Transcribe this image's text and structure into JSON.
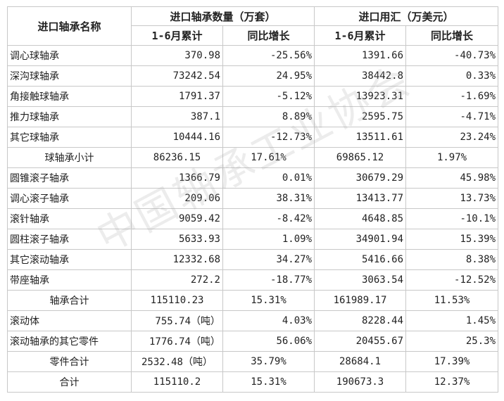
{
  "header": {
    "name_col": "进口轴承名称",
    "group_quantity": "进口轴承数量（万套）",
    "group_forex": "进口用汇（万美元）",
    "sub_cumulative": "1-6月累计",
    "sub_growth": "同比增长"
  },
  "rows": [
    {
      "name": "调心球轴承",
      "qty": "370.98",
      "qty_growth": "-25.56%",
      "fx": "1391.66",
      "fx_growth": "-40.73%",
      "kind": "item"
    },
    {
      "name": "深沟球轴承",
      "qty": "73242.54",
      "qty_growth": "24.95%",
      "fx": "38442.8",
      "fx_growth": "0.33%",
      "kind": "item"
    },
    {
      "name": "角接触球轴承",
      "qty": "1791.37",
      "qty_growth": "-5.12%",
      "fx": "13923.31",
      "fx_growth": "-1.69%",
      "kind": "item"
    },
    {
      "name": "推力球轴承",
      "qty": "387.1",
      "qty_growth": "8.89%",
      "fx": "2595.75",
      "fx_growth": "-4.71%",
      "kind": "item"
    },
    {
      "name": "其它球轴承",
      "qty": "10444.16",
      "qty_growth": "-12.73%",
      "fx": "13511.61",
      "fx_growth": "23.24%",
      "kind": "item"
    },
    {
      "name": "球轴承小计",
      "qty": "86236.15",
      "qty_growth": "17.61%",
      "fx": "69865.12",
      "fx_growth": "1.97%",
      "kind": "sub"
    },
    {
      "name": "圆锥滚子轴承",
      "qty": "1366.79",
      "qty_growth": "0.01%",
      "fx": "30679.29",
      "fx_growth": "45.98%",
      "kind": "item"
    },
    {
      "name": "调心滚子轴承",
      "qty": "209.06",
      "qty_growth": "38.31%",
      "fx": "13413.77",
      "fx_growth": "13.73%",
      "kind": "item"
    },
    {
      "name": "滚针轴承",
      "qty": "9059.42",
      "qty_growth": "-8.42%",
      "fx": "4648.85",
      "fx_growth": "-10.1%",
      "kind": "item"
    },
    {
      "name": "圆柱滚子轴承",
      "qty": "5633.93",
      "qty_growth": "1.09%",
      "fx": "34901.94",
      "fx_growth": "15.39%",
      "kind": "item"
    },
    {
      "name": "其它滚动轴承",
      "qty": "12332.68",
      "qty_growth": "34.27%",
      "fx": "5416.66",
      "fx_growth": "8.38%",
      "kind": "item"
    },
    {
      "name": "带座轴承",
      "qty": "272.2",
      "qty_growth": "-18.77%",
      "fx": "3063.54",
      "fx_growth": "-12.52%",
      "kind": "item"
    },
    {
      "name": "轴承合计",
      "qty": "115110.23",
      "qty_growth": "15.31%",
      "fx": "161989.17",
      "fx_growth": "11.53%",
      "kind": "sub"
    },
    {
      "name": "滚动体",
      "qty": "755.74（吨）",
      "qty_growth": "4.03%",
      "fx": "8228.44",
      "fx_growth": "1.45%",
      "kind": "item"
    },
    {
      "name": "滚动轴承的其它零件",
      "qty": "1776.74（吨）",
      "qty_growth": "56.06%",
      "fx": "20455.67",
      "fx_growth": "25.3%",
      "kind": "item"
    },
    {
      "name": "零件合计",
      "qty": "2532.48（吨）",
      "qty_growth": "35.79%",
      "fx": "28684.1",
      "fx_growth": "17.39%",
      "kind": "sub"
    },
    {
      "name": "合计",
      "qty": "115110.2",
      "qty_growth": "15.31%",
      "fx": "190673.3",
      "fx_growth": "12.37%",
      "kind": "sub"
    }
  ],
  "watermark": "中国轴承工业协会"
}
